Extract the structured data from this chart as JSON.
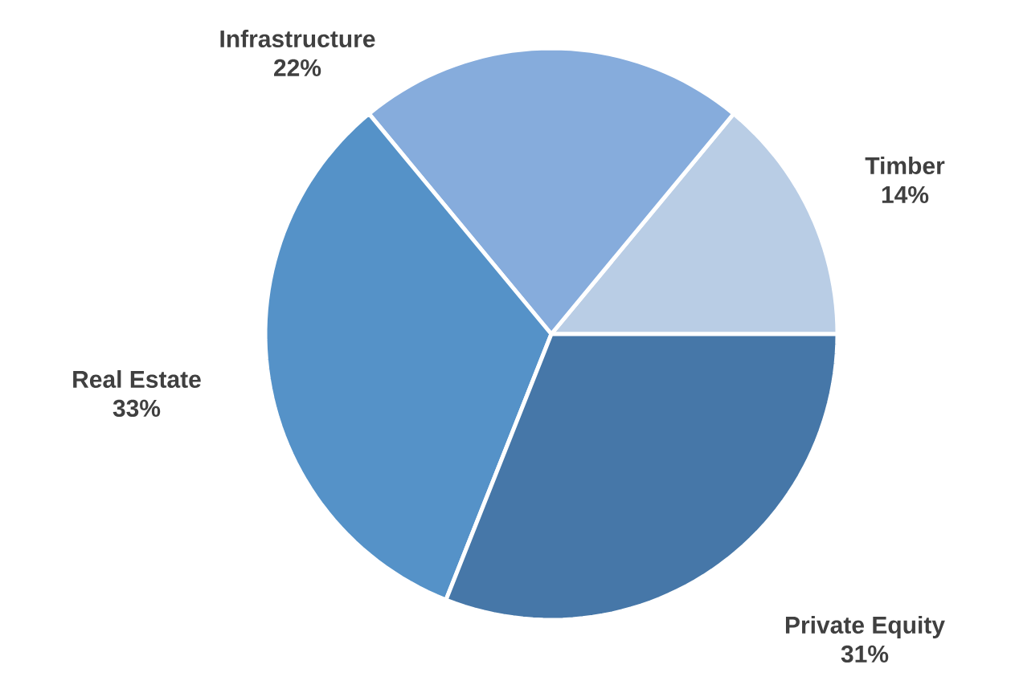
{
  "chart_data": {
    "type": "pie",
    "categories": [
      "Timber",
      "Infrastructure",
      "Real Estate",
      "Private Equity"
    ],
    "values": [
      14,
      22,
      33,
      31
    ],
    "value_labels": [
      "14%",
      "22%",
      "33%",
      "31%"
    ],
    "colors": [
      "#b9cde5",
      "#86acdc",
      "#5592c8",
      "#4677a8"
    ]
  }
}
